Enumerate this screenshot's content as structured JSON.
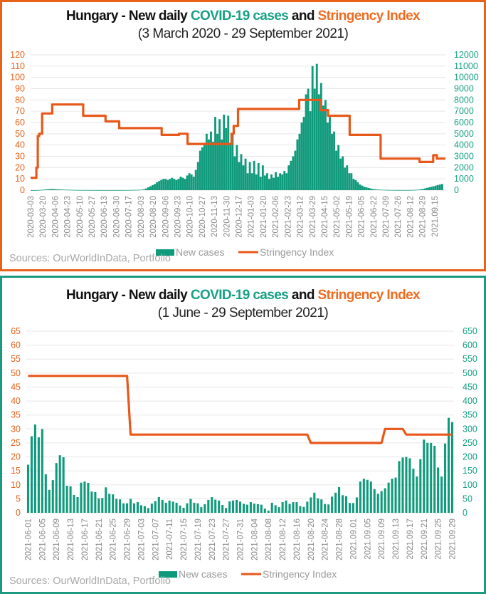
{
  "colors": {
    "cases": "#109a7c",
    "stringency": "#e8581a",
    "grid": "#e6e6e6",
    "left_axis": "#e8621a",
    "right_axis": "#17a085"
  },
  "legend": {
    "cases": "New cases",
    "stringency": "Stringency Index"
  },
  "source": "Sources: OurWorldInData, Portfolio",
  "chart_data": [
    {
      "type": "bar+line",
      "title_parts": [
        "Hungary - New daily ",
        "COVID-19 cases",
        " and ",
        "Stringency Index"
      ],
      "subtitle": "(3 March 2020 - 29 September 2021)",
      "left_axis": {
        "label": "Stringency Index",
        "ylim": [
          0,
          120
        ],
        "ticks": [
          0,
          10,
          20,
          30,
          40,
          50,
          60,
          70,
          80,
          90,
          100,
          110,
          120
        ]
      },
      "right_axis": {
        "label": "New cases",
        "ylim": [
          0,
          12000
        ],
        "ticks": [
          0,
          1000,
          2000,
          3000,
          4000,
          5000,
          6000,
          7000,
          8000,
          9000,
          10000,
          11000,
          12000
        ]
      },
      "x_start": "2020-03-03",
      "x_end": "2021-09-29",
      "x_days": 576,
      "x_tick_labels": [
        "2020-03-03",
        "2020-03-20",
        "2020-04-06",
        "2020-04-23",
        "2020-05-10",
        "2020-05-27",
        "2020-06-13",
        "2020-06-30",
        "2020-07-17",
        "2020-08-03",
        "2020-08-20",
        "2020-09-06",
        "2020-09-23",
        "2020-10-10",
        "2020-10-27",
        "2020-11-13",
        "2020-11-30",
        "2020-12-17",
        "2021-01-03",
        "2021-01-20",
        "2021-02-06",
        "2021-02-23",
        "2021-03-12",
        "2021-03-29",
        "2021-04-15",
        "2021-05-02",
        "2021-05-19",
        "2021-06-05",
        "2021-06-22",
        "2021-07-09",
        "2021-07-26",
        "2021-08-12",
        "2021-08-29",
        "2021.09.15"
      ],
      "x_tick_step_days": 17,
      "cases_sample_step_days": 3,
      "cases": [
        0,
        0,
        5,
        10,
        20,
        30,
        60,
        80,
        90,
        100,
        110,
        90,
        80,
        70,
        60,
        50,
        40,
        35,
        30,
        25,
        20,
        18,
        15,
        15,
        12,
        10,
        10,
        8,
        8,
        6,
        5,
        5,
        5,
        5,
        5,
        5,
        5,
        5,
        5,
        5,
        5,
        5,
        10,
        10,
        10,
        15,
        15,
        20,
        25,
        30,
        40,
        50,
        80,
        150,
        250,
        350,
        450,
        550,
        700,
        800,
        900,
        1000,
        1000,
        900,
        1000,
        1100,
        1000,
        900,
        1000,
        1200,
        1100,
        1000,
        1300,
        1500,
        1400,
        1200,
        1800,
        2500,
        3500,
        3800,
        4200,
        5000,
        4500,
        5200,
        4300,
        6500,
        5000,
        6300,
        4500,
        6700,
        5500,
        6600,
        4200,
        5000,
        3000,
        4000,
        2500,
        3200,
        2200,
        2800,
        1500,
        2500,
        1500,
        2600,
        1400,
        2400,
        1200,
        2200,
        1300,
        1500,
        1000,
        1400,
        1100,
        1600,
        1200,
        1500,
        1400,
        1700,
        1500,
        2200,
        2600,
        3000,
        3500,
        4500,
        5000,
        6000,
        6500,
        8500,
        9000,
        7000,
        11000,
        9000,
        11200,
        8500,
        9500,
        7500,
        8000,
        6000,
        6500,
        5000,
        5200,
        3500,
        4000,
        2800,
        3000,
        2000,
        2200,
        1500,
        1500,
        1000,
        900,
        700,
        500,
        400,
        300,
        250,
        200,
        150,
        100,
        80,
        60,
        50,
        40,
        30,
        25,
        20,
        20,
        15,
        15,
        10,
        10,
        10,
        10,
        10,
        10,
        10,
        20,
        20,
        30,
        50,
        80,
        100,
        150,
        200,
        250,
        300,
        350,
        400,
        450,
        500,
        550
      ],
      "stringency_steps": [
        {
          "from_day": 0,
          "to_day": 8,
          "value": 11
        },
        {
          "from_day": 8,
          "to_day": 10,
          "value": 20
        },
        {
          "from_day": 10,
          "to_day": 12,
          "value": 48
        },
        {
          "from_day": 12,
          "to_day": 16,
          "value": 50
        },
        {
          "from_day": 16,
          "to_day": 30,
          "value": 68
        },
        {
          "from_day": 30,
          "to_day": 73,
          "value": 76
        },
        {
          "from_day": 73,
          "to_day": 104,
          "value": 66
        },
        {
          "from_day": 104,
          "to_day": 123,
          "value": 61
        },
        {
          "from_day": 123,
          "to_day": 182,
          "value": 55
        },
        {
          "from_day": 182,
          "to_day": 206,
          "value": 49
        },
        {
          "from_day": 206,
          "to_day": 218,
          "value": 50
        },
        {
          "from_day": 218,
          "to_day": 279,
          "value": 41
        },
        {
          "from_day": 279,
          "to_day": 282,
          "value": 50
        },
        {
          "from_day": 282,
          "to_day": 288,
          "value": 57
        },
        {
          "from_day": 288,
          "to_day": 373,
          "value": 72
        },
        {
          "from_day": 373,
          "to_day": 402,
          "value": 80
        },
        {
          "from_day": 402,
          "to_day": 413,
          "value": 71
        },
        {
          "from_day": 413,
          "to_day": 443,
          "value": 66
        },
        {
          "from_day": 443,
          "to_day": 486,
          "value": 49
        },
        {
          "from_day": 486,
          "to_day": 540,
          "value": 28
        },
        {
          "from_day": 540,
          "to_day": 559,
          "value": 25
        },
        {
          "from_day": 559,
          "to_day": 564,
          "value": 31
        },
        {
          "from_day": 564,
          "to_day": 576,
          "value": 28
        }
      ]
    },
    {
      "type": "bar+line",
      "title_parts": [
        "Hungary - New daily ",
        "COVID-19 cases",
        " and ",
        "Stringency Index"
      ],
      "subtitle": "(1 June - 29 September 2021)",
      "left_axis": {
        "label": "Stringency Index",
        "ylim": [
          0,
          65
        ],
        "ticks": [
          0,
          5,
          10,
          15,
          20,
          25,
          30,
          35,
          40,
          45,
          50,
          55,
          60,
          65
        ]
      },
      "right_axis": {
        "label": "New cases",
        "ylim": [
          0,
          650
        ],
        "ticks": [
          0,
          50,
          100,
          150,
          200,
          250,
          300,
          350,
          400,
          450,
          500,
          550,
          600,
          650
        ]
      },
      "x_start": "2021-06-01",
      "x_end": "2021-09-29",
      "x_tick_labels": [
        "2021-06-01",
        "2021-06-05",
        "2021-06-09",
        "2021-06-13",
        "2021-06-17",
        "2021-06-21",
        "2021-06-25",
        "2021-06-29",
        "2021-07-03",
        "2021-07-07",
        "2021-07-11",
        "2021-07-15",
        "2021-07-19",
        "2021-07-23",
        "2021-07-27",
        "2021-07-31",
        "2021-08-04",
        "2021-08-08",
        "2021-08-12",
        "2021-08-16",
        "2021-08-20",
        "2021-08-24",
        "2021-08-28",
        "2021.09.01",
        "2021.09.05",
        "2021.09.09",
        "2021.09.13",
        "2021.09.17",
        "2021.09.21",
        "2021.09.25",
        "2021.09.29"
      ],
      "x_tick_step_days": 4,
      "cases": [
        172,
        274,
        316,
        270,
        300,
        138,
        82,
        117,
        178,
        206,
        199,
        97,
        95,
        64,
        56,
        108,
        112,
        107,
        76,
        74,
        52,
        53,
        91,
        68,
        66,
        50,
        48,
        34,
        34,
        50,
        34,
        38,
        27,
        24,
        17,
        33,
        42,
        56,
        46,
        36,
        44,
        40,
        36,
        26,
        18,
        34,
        50,
        36,
        34,
        20,
        31,
        46,
        56,
        47,
        44,
        28,
        17,
        41,
        44,
        46,
        40,
        32,
        29,
        38,
        33,
        31,
        29,
        15,
        8,
        36,
        27,
        20,
        38,
        44,
        32,
        38,
        38,
        24,
        21,
        40,
        55,
        72,
        52,
        48,
        32,
        30,
        58,
        72,
        92,
        63,
        60,
        35,
        35,
        55,
        112,
        122,
        118,
        112,
        85,
        68,
        78,
        88,
        108,
        122,
        126,
        185,
        198,
        200,
        195,
        158,
        130,
        192,
        262,
        250,
        250,
        240,
        162,
        130,
        248,
        340,
        325
      ],
      "stringency": [
        49,
        49,
        49,
        49,
        49,
        49,
        49,
        49,
        49,
        49,
        49,
        49,
        49,
        49,
        49,
        49,
        49,
        49,
        49,
        49,
        49,
        49,
        49,
        49,
        49,
        49,
        49,
        49,
        49,
        28,
        28,
        28,
        28,
        28,
        28,
        28,
        28,
        28,
        28,
        28,
        28,
        28,
        28,
        28,
        28,
        28,
        28,
        28,
        28,
        28,
        28,
        28,
        28,
        28,
        28,
        28,
        28,
        28,
        28,
        28,
        28,
        28,
        28,
        28,
        28,
        28,
        28,
        28,
        28,
        28,
        28,
        28,
        28,
        28,
        28,
        28,
        28,
        28,
        28,
        28,
        25,
        25,
        25,
        25,
        25,
        25,
        25,
        25,
        25,
        25,
        25,
        25,
        25,
        25,
        25,
        25,
        25,
        25,
        25,
        25,
        25,
        30,
        30,
        30,
        30,
        30,
        30,
        28,
        28,
        28,
        28,
        28,
        28,
        28,
        28,
        28,
        28,
        28,
        28,
        28,
        28
      ]
    }
  ]
}
